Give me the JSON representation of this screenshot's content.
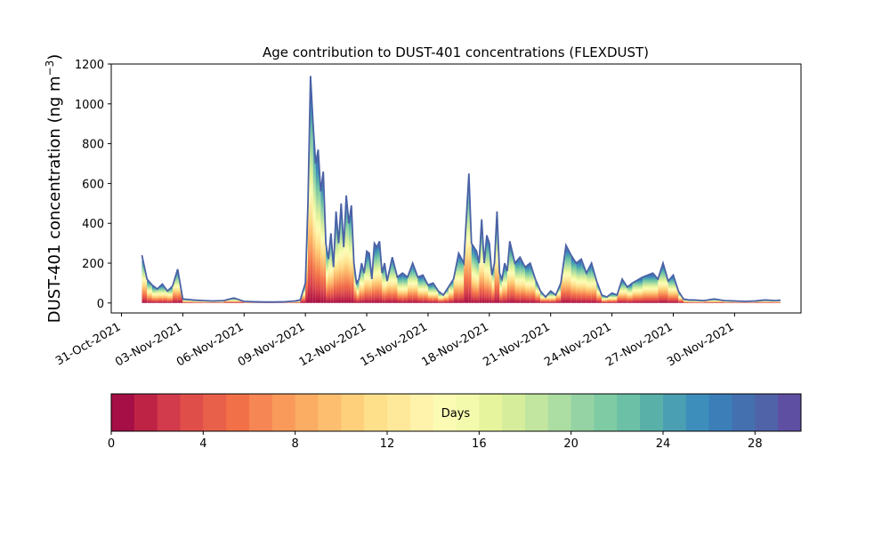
{
  "chart_data": {
    "type": "area",
    "title": "Age contribution to DUST-401 concentrations (FLEXDUST)",
    "ylabel": "DUST-401 concentration (ng m",
    "ylabel_sup": "−3",
    "ylabel_close": ")",
    "xlabel": "",
    "ylim": [
      -50,
      1200
    ],
    "yticks": [
      0,
      200,
      400,
      600,
      800,
      1000,
      1200
    ],
    "xlim": [
      "2021-10-30T12:00",
      "2021-12-03T06:00"
    ],
    "xticks": [
      "2021-10-31",
      "2021-11-03",
      "2021-11-06",
      "2021-11-09",
      "2021-11-12",
      "2021-11-15",
      "2021-11-18",
      "2021-11-21",
      "2021-11-24",
      "2021-11-27",
      "2021-11-30"
    ],
    "xtick_labels": [
      "31-Oct-2021",
      "03-Nov-2021",
      "06-Nov-2021",
      "09-Nov-2021",
      "12-Nov-2021",
      "15-Nov-2021",
      "18-Nov-2021",
      "21-Nov-2021",
      "24-Nov-2021",
      "27-Nov-2021",
      "30-Nov-2021"
    ],
    "grid": false,
    "stack_layers": 30,
    "total_concentration": {
      "x": [
        "2021-11-01T00:00",
        "2021-11-01T06:00",
        "2021-11-01T12:00",
        "2021-11-01T18:00",
        "2021-11-02T00:00",
        "2021-11-02T06:00",
        "2021-11-02T12:00",
        "2021-11-02T18:00",
        "2021-11-03T00:00",
        "2021-11-03T12:00",
        "2021-11-04T00:00",
        "2021-11-04T12:00",
        "2021-11-05T00:00",
        "2021-11-05T12:00",
        "2021-11-06T00:00",
        "2021-11-06T12:00",
        "2021-11-07T00:00",
        "2021-11-07T12:00",
        "2021-11-08T00:00",
        "2021-11-08T06:00",
        "2021-11-08T12:00",
        "2021-11-08T18:00",
        "2021-11-09T00:00",
        "2021-11-09T03:00",
        "2021-11-09T06:00",
        "2021-11-09T09:00",
        "2021-11-09T12:00",
        "2021-11-09T15:00",
        "2021-11-09T18:00",
        "2021-11-09T21:00",
        "2021-11-10T00:00",
        "2021-11-10T03:00",
        "2021-11-10T06:00",
        "2021-11-10T09:00",
        "2021-11-10T12:00",
        "2021-11-10T15:00",
        "2021-11-10T18:00",
        "2021-11-10T21:00",
        "2021-11-11T00:00",
        "2021-11-11T03:00",
        "2021-11-11T06:00",
        "2021-11-11T09:00",
        "2021-11-11T12:00",
        "2021-11-11T15:00",
        "2021-11-11T18:00",
        "2021-11-11T21:00",
        "2021-11-12T00:00",
        "2021-11-12T03:00",
        "2021-11-12T06:00",
        "2021-11-12T09:00",
        "2021-11-12T12:00",
        "2021-11-12T15:00",
        "2021-11-12T18:00",
        "2021-11-12T21:00",
        "2021-11-13T00:00",
        "2021-11-13T06:00",
        "2021-11-13T12:00",
        "2021-11-13T18:00",
        "2021-11-14T00:00",
        "2021-11-14T06:00",
        "2021-11-14T12:00",
        "2021-11-14T18:00",
        "2021-11-15T00:00",
        "2021-11-15T06:00",
        "2021-11-15T12:00",
        "2021-11-15T18:00",
        "2021-11-16T00:00",
        "2021-11-16T06:00",
        "2021-11-16T12:00",
        "2021-11-16T18:00",
        "2021-11-17T00:00",
        "2021-11-17T03:00",
        "2021-11-17T06:00",
        "2021-11-17T09:00",
        "2021-11-17T12:00",
        "2021-11-17T15:00",
        "2021-11-17T18:00",
        "2021-11-17T21:00",
        "2021-11-18T00:00",
        "2021-11-18T03:00",
        "2021-11-18T06:00",
        "2021-11-18T09:00",
        "2021-11-18T12:00",
        "2021-11-18T15:00",
        "2021-11-18T18:00",
        "2021-11-18T21:00",
        "2021-11-19T00:00",
        "2021-11-19T06:00",
        "2021-11-19T12:00",
        "2021-11-19T18:00",
        "2021-11-20T00:00",
        "2021-11-20T06:00",
        "2021-11-20T12:00",
        "2021-11-20T18:00",
        "2021-11-21T00:00",
        "2021-11-21T06:00",
        "2021-11-21T12:00",
        "2021-11-21T18:00",
        "2021-11-22T00:00",
        "2021-11-22T06:00",
        "2021-11-22T12:00",
        "2021-11-22T18:00",
        "2021-11-23T00:00",
        "2021-11-23T06:00",
        "2021-11-23T12:00",
        "2021-11-23T18:00",
        "2021-11-24T00:00",
        "2021-11-24T06:00",
        "2021-11-24T12:00",
        "2021-11-24T18:00",
        "2021-11-25T00:00",
        "2021-11-25T12:00",
        "2021-11-26T00:00",
        "2021-11-26T06:00",
        "2021-11-26T12:00",
        "2021-11-26T18:00",
        "2021-11-27T00:00",
        "2021-11-27T06:00",
        "2021-11-27T12:00",
        "2021-11-27T18:00",
        "2021-11-28T00:00",
        "2021-11-28T12:00",
        "2021-11-29T00:00",
        "2021-11-29T12:00",
        "2021-11-30T00:00",
        "2021-11-30T12:00",
        "2021-12-01T00:00",
        "2021-12-01T12:00",
        "2021-12-02T00:00",
        "2021-12-02T06:00"
      ],
      "values": [
        240,
        120,
        90,
        70,
        95,
        60,
        85,
        170,
        20,
        15,
        12,
        10,
        12,
        25,
        8,
        6,
        5,
        5,
        6,
        8,
        10,
        15,
        100,
        500,
        1140,
        900,
        700,
        770,
        560,
        660,
        300,
        220,
        350,
        180,
        460,
        300,
        500,
        280,
        540,
        400,
        490,
        200,
        100,
        120,
        200,
        150,
        260,
        250,
        120,
        300,
        280,
        310,
        150,
        200,
        110,
        230,
        130,
        150,
        130,
        200,
        130,
        140,
        90,
        100,
        60,
        40,
        80,
        120,
        250,
        200,
        650,
        300,
        280,
        260,
        200,
        420,
        200,
        340,
        300,
        140,
        200,
        460,
        150,
        120,
        200,
        160,
        310,
        200,
        230,
        180,
        200,
        120,
        60,
        30,
        60,
        40,
        100,
        290,
        240,
        200,
        220,
        150,
        200,
        110,
        40,
        30,
        50,
        40,
        120,
        80,
        100,
        130,
        150,
        120,
        200,
        110,
        140,
        60,
        20,
        15,
        15,
        12,
        20,
        12,
        10,
        8,
        10,
        15,
        12,
        14
      ]
    },
    "colorbar": {
      "label": "Days",
      "ticks": [
        0,
        4,
        8,
        12,
        16,
        20,
        24,
        28
      ],
      "range": [
        0,
        30
      ],
      "colors": [
        "#a50f45",
        "#be2346",
        "#d13b4c",
        "#e04e4a",
        "#e9604a",
        "#f27048",
        "#f68653",
        "#f99a5a",
        "#fbad64",
        "#fdbf6f",
        "#fed07c",
        "#fee08b",
        "#fee99a",
        "#fff2aa",
        "#fbfbb4",
        "#f4faac",
        "#e6f49d",
        "#d6ee9b",
        "#c2e6a0",
        "#acdda2",
        "#95d3a4",
        "#7fcba4",
        "#6bc0a5",
        "#58b0a8",
        "#4a9fb2",
        "#3e8ebb",
        "#3b7eb8",
        "#4470b0",
        "#5062a8",
        "#5e4fa2"
      ]
    }
  }
}
